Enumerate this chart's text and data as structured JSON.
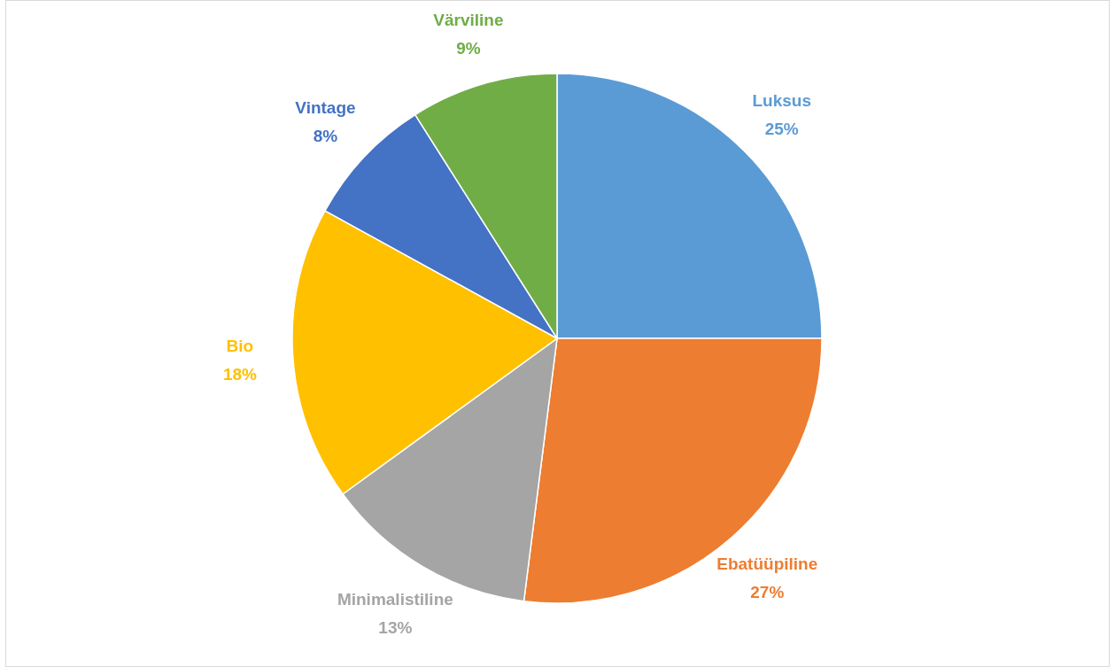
{
  "chart_data": {
    "type": "pie",
    "categories": [
      "Luksus",
      "Ebatüüpiline",
      "Minimalistiline",
      "Bio",
      "Vintage",
      "Värviline"
    ],
    "values": [
      25,
      27,
      13,
      18,
      8,
      9
    ],
    "colors": [
      "#5b9bd5",
      "#ed7d31",
      "#a5a5a5",
      "#ffc000",
      "#4472c4",
      "#70ad47"
    ],
    "value_labels": [
      "25%",
      "27%",
      "13%",
      "18%",
      "8%",
      "9%"
    ]
  }
}
